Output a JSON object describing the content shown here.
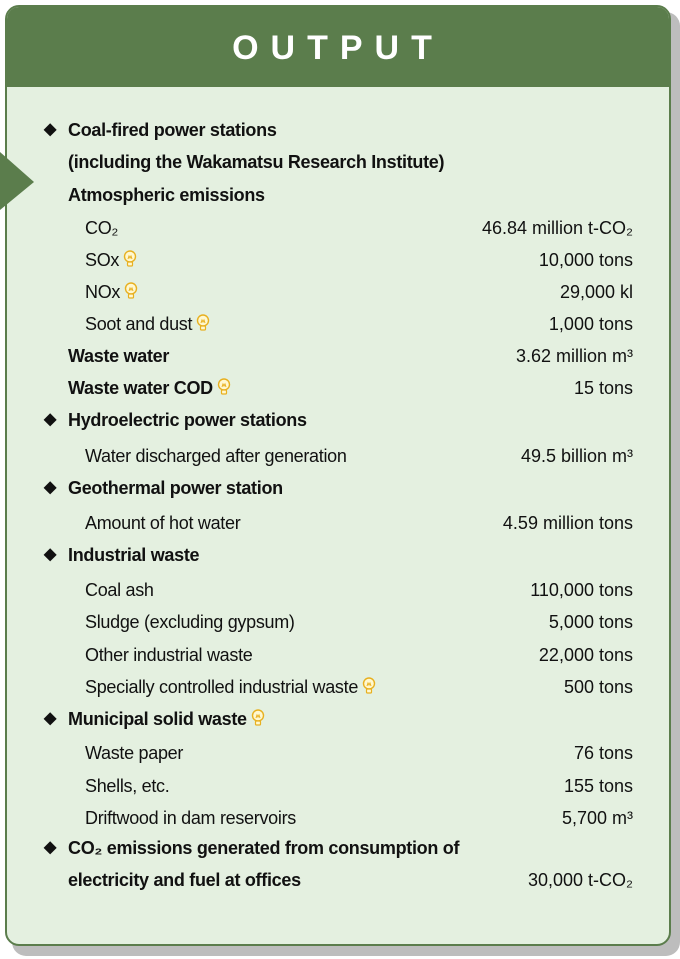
{
  "title": "OUTPUT",
  "sections": [
    {
      "heading": [
        "Coal-fired power stations",
        "(including the Wakamatsu Research Institute)"
      ],
      "rows": [
        {
          "label": "Atmospheric emissions"
        },
        {
          "label": "CO₂",
          "value": "46.84 million t-CO₂"
        },
        {
          "label": "SOx",
          "value": "10,000 tons"
        },
        {
          "label": "NOx",
          "value": "29,000 kl"
        },
        {
          "label": "Soot and dust",
          "value": "1,000 tons"
        },
        {
          "label": "Waste water",
          "value": "3.62 million m³"
        },
        {
          "label": "Waste water COD",
          "value": "15 tons"
        }
      ]
    },
    {
      "heading": [
        "Hydroelectric power stations"
      ],
      "rows": [
        {
          "label": "Water discharged after generation",
          "value": "49.5 billion m³"
        }
      ]
    },
    {
      "heading": [
        "Geothermal power station"
      ],
      "rows": [
        {
          "label": "Amount of hot water",
          "value": "4.59 million tons"
        }
      ]
    },
    {
      "heading": [
        "Industrial waste"
      ],
      "rows": [
        {
          "label": "Coal ash",
          "value": "110,000 tons"
        },
        {
          "label": "Sludge (excluding gypsum)",
          "value": "5,000 tons"
        },
        {
          "label": "Other industrial waste",
          "value": "22,000 tons"
        },
        {
          "label": "Specially controlled industrial waste",
          "value": "500 tons"
        }
      ]
    },
    {
      "heading": [
        "Municipal solid waste"
      ],
      "rows": [
        {
          "label": "Waste paper",
          "value": "76 tons"
        },
        {
          "label": "Shells, etc.",
          "value": "155 tons"
        },
        {
          "label": "Driftwood in dam reservoirs",
          "value": "5,700 m³"
        }
      ]
    },
    {
      "heading": [
        "CO₂ emissions generated from consumption of",
        "electricity and fuel at offices"
      ],
      "value": "30,000 t-CO₂"
    }
  ]
}
